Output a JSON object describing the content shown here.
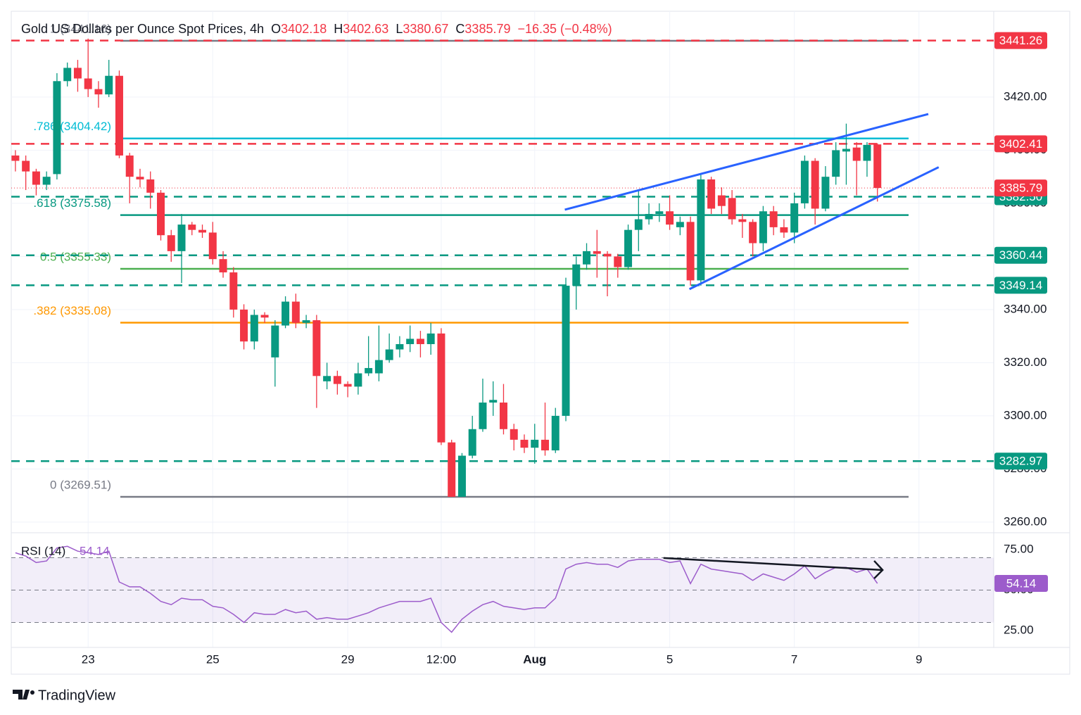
{
  "header": {
    "title": "Gold US Dollars per Ounce Spot Prices, 4h",
    "o_label": "O",
    "o": "3402.18",
    "h_label": "H",
    "h": "3402.63",
    "l_label": "L",
    "l": "3380.67",
    "c_label": "C",
    "c": "3385.79",
    "change": "−16.35 (−0.48%)"
  },
  "footer": {
    "brand": "TradingView"
  },
  "chart_data": {
    "type": "candlestick",
    "up_color": "#089981",
    "down_color": "#f23645",
    "candles": {
      "open": [
        3398,
        3396,
        3392,
        3387,
        3391,
        3426,
        3431,
        3427,
        3423,
        3421,
        3428,
        3398,
        3390,
        3389,
        3384,
        3368,
        3362,
        3372,
        3370,
        3369,
        3359,
        3354,
        3340,
        3328,
        3338,
        3322,
        3334,
        3343,
        3335,
        3336,
        3313,
        3315,
        3312,
        3311,
        3316,
        3316,
        3321,
        3325,
        3327,
        3329,
        3327,
        3331,
        3290,
        3269.51,
        3285,
        3295,
        3305,
        3305,
        3295,
        3291,
        3288,
        3291,
        3287,
        3300,
        3349,
        3357,
        3362,
        3361,
        3360,
        3356,
        3370,
        3374,
        3376,
        3377,
        3371,
        3373,
        3351,
        3389,
        3383,
        3382,
        3374,
        3373,
        3365,
        3377,
        3371,
        3369,
        3380,
        3396,
        3378,
        3390,
        3399.5,
        3401,
        3396,
        3402.18
      ],
      "high": [
        3400,
        3398,
        3393,
        3392,
        3429,
        3433,
        3434,
        3442,
        3426,
        3434,
        3430,
        3399,
        3393,
        3392,
        3385,
        3370,
        3376,
        3373,
        3372,
        3373,
        3362,
        3356,
        3342,
        3340,
        3339,
        3336,
        3345,
        3346,
        3338,
        3338,
        3320,
        3317,
        3313,
        3320,
        3330,
        3334,
        3331,
        3330,
        3334,
        3332,
        3335,
        3333,
        3291,
        3286,
        3300,
        3314,
        3313,
        3312,
        3297,
        3293,
        3297,
        3305,
        3303,
        3352,
        3360,
        3365,
        3370,
        3362,
        3361,
        3372,
        3385,
        3380,
        3380,
        3383,
        3375,
        3375,
        3391,
        3390,
        3386,
        3385,
        3376,
        3374,
        3379,
        3379,
        3374,
        3384,
        3398,
        3397,
        3394,
        3403,
        3410,
        3403,
        3403,
        3402.63
      ],
      "low": [
        3392,
        3385,
        3383,
        3385,
        3389,
        3424,
        3422,
        3420,
        3416,
        3420,
        3397,
        3380,
        3386,
        3378,
        3366,
        3358,
        3350,
        3368,
        3367,
        3357,
        3352,
        3337,
        3325,
        3325,
        3335,
        3311,
        3333,
        3333,
        3333,
        3303,
        3310,
        3308,
        3307,
        3308,
        3315,
        3313,
        3320,
        3322,
        3324,
        3322,
        3323,
        3289,
        3269.51,
        3269.51,
        3284,
        3294,
        3300,
        3293,
        3287,
        3286,
        3282,
        3285,
        3286,
        3298,
        3340,
        3355,
        3352,
        3345,
        3352,
        3355,
        3362,
        3372,
        3373,
        3370,
        3368,
        3349,
        3349,
        3376,
        3376,
        3372,
        3367,
        3360,
        3362,
        3368,
        3367,
        3365,
        3378,
        3372,
        3377,
        3387,
        3387,
        3383,
        3390,
        3380.67
      ],
      "close": [
        3396,
        3392,
        3387,
        3390,
        3426,
        3431,
        3427,
        3423,
        3421,
        3428,
        3398,
        3390,
        3389,
        3384,
        3368,
        3362,
        3372,
        3370,
        3369,
        3359,
        3354,
        3340,
        3328,
        3338,
        3337,
        3334,
        3343,
        3335,
        3336,
        3315,
        3315,
        3312,
        3311,
        3316,
        3318,
        3321,
        3325,
        3327,
        3329,
        3327,
        3331,
        3290,
        3269.51,
        3285,
        3295,
        3305,
        3306,
        3295,
        3291,
        3288,
        3291,
        3287,
        3300,
        3349,
        3357,
        3362,
        3361,
        3360,
        3356,
        3370,
        3374,
        3376,
        3377,
        3372,
        3373,
        3351,
        3389,
        3378,
        3379,
        3374,
        3373,
        3365,
        3377,
        3371,
        3369,
        3380,
        3396,
        3378,
        3390,
        3400,
        3400.5,
        3396,
        3402,
        3385.79
      ]
    },
    "xlim": [
      -0.4,
      94.2
    ],
    "ylim": [
      3256,
      3452.3
    ],
    "grid": true,
    "xticks": [
      {
        "value": 7,
        "label": "23"
      },
      {
        "value": 19,
        "label": "25"
      },
      {
        "value": 32,
        "label": "29"
      },
      {
        "value": 41,
        "label": "12:00"
      },
      {
        "value": 50,
        "label": "Aug"
      },
      {
        "value": 63,
        "label": "5"
      },
      {
        "value": 75,
        "label": "7"
      },
      {
        "value": 87,
        "label": "9"
      }
    ],
    "yticks": [
      {
        "value": 3260,
        "label": "3260.00"
      },
      {
        "value": 3280,
        "label": "3280.00"
      },
      {
        "value": 3300,
        "label": "3300.00"
      },
      {
        "value": 3320,
        "label": "3320.00"
      },
      {
        "value": 3340,
        "label": "3340.00"
      },
      {
        "value": 3360,
        "label": "3360.00"
      },
      {
        "value": 3380,
        "label": "3380.00"
      },
      {
        "value": 3400,
        "label": "3400.00"
      },
      {
        "value": 3420,
        "label": "3420.00"
      }
    ],
    "fib_x": [
      10.1,
      86
    ],
    "fib": [
      {
        "label": "1 (3441.16)",
        "value": 3441.16,
        "color": "#787b86"
      },
      {
        "label": ".786 (3404.42)",
        "value": 3404.42,
        "color": "#00bcd4"
      },
      {
        "label": ".618 (3375.58)",
        "value": 3375.58,
        "color": "#089981"
      },
      {
        "label": "0.5 (3355.33)",
        "value": 3355.33,
        "color": "#4caf50"
      },
      {
        "label": ".382 (3335.08)",
        "value": 3335.08,
        "color": "#ff9800"
      },
      {
        "label": "0 (3269.51)",
        "value": 3269.51,
        "color": "#787b86"
      }
    ],
    "levels": [
      {
        "value": 3441.26,
        "label": "3441.26",
        "color": "#f23645"
      },
      {
        "value": 3402.41,
        "label": "3402.41",
        "color": "#f23645"
      },
      {
        "value": 3382.5,
        "label": "3382.50",
        "color": "#089981"
      },
      {
        "value": 3360.44,
        "label": "3360.44",
        "color": "#089981"
      },
      {
        "value": 3349.14,
        "label": "3349.14",
        "color": "#089981"
      },
      {
        "value": 3282.97,
        "label": "3282.97",
        "color": "#089981"
      }
    ],
    "last_price": {
      "value": 3385.79,
      "label": "3385.79",
      "color": "#f23645"
    },
    "trendlines": [
      {
        "from": [
          52.9,
          3377.6
        ],
        "to": [
          87.9,
          3413.6
        ],
        "color": "#2962ff"
      },
      {
        "from": [
          64.9,
          3347.7
        ],
        "to": [
          88.9,
          3393.6
        ],
        "color": "#2962ff"
      }
    ],
    "rsi": {
      "name": "RSI (14)",
      "value": 54.14,
      "value_label": "54.14",
      "color": "#9c5ccb",
      "values": [
        73,
        71,
        67,
        68,
        76,
        77,
        74,
        73,
        72,
        74,
        55,
        52,
        52,
        48,
        43,
        41,
        45,
        44,
        44,
        40,
        39,
        35,
        30,
        36,
        35,
        35,
        38,
        36,
        37,
        32,
        33,
        32,
        32,
        34,
        36,
        39,
        41,
        43,
        43,
        43,
        45,
        30,
        24,
        32,
        37,
        41,
        43,
        40,
        39,
        38,
        39,
        39,
        45,
        63,
        66,
        67,
        66,
        66,
        64,
        68,
        69,
        69,
        69,
        67,
        68,
        54,
        66,
        63,
        62,
        61,
        60,
        56,
        60,
        58,
        56,
        60,
        65,
        57,
        61,
        64,
        64,
        61,
        63,
        54.14
      ],
      "ylim": [
        14.6,
        85.4
      ],
      "levels": [
        70,
        50,
        30
      ],
      "yticks": [
        {
          "value": 75,
          "label": "75.00"
        },
        {
          "value": 50,
          "label": "50.00"
        },
        {
          "value": 25,
          "label": "25.00"
        }
      ],
      "arrow": {
        "from": [
          62.4,
          69.8
        ],
        "to": [
          83.5,
          62.4
        ],
        "color": "#131722"
      }
    }
  }
}
